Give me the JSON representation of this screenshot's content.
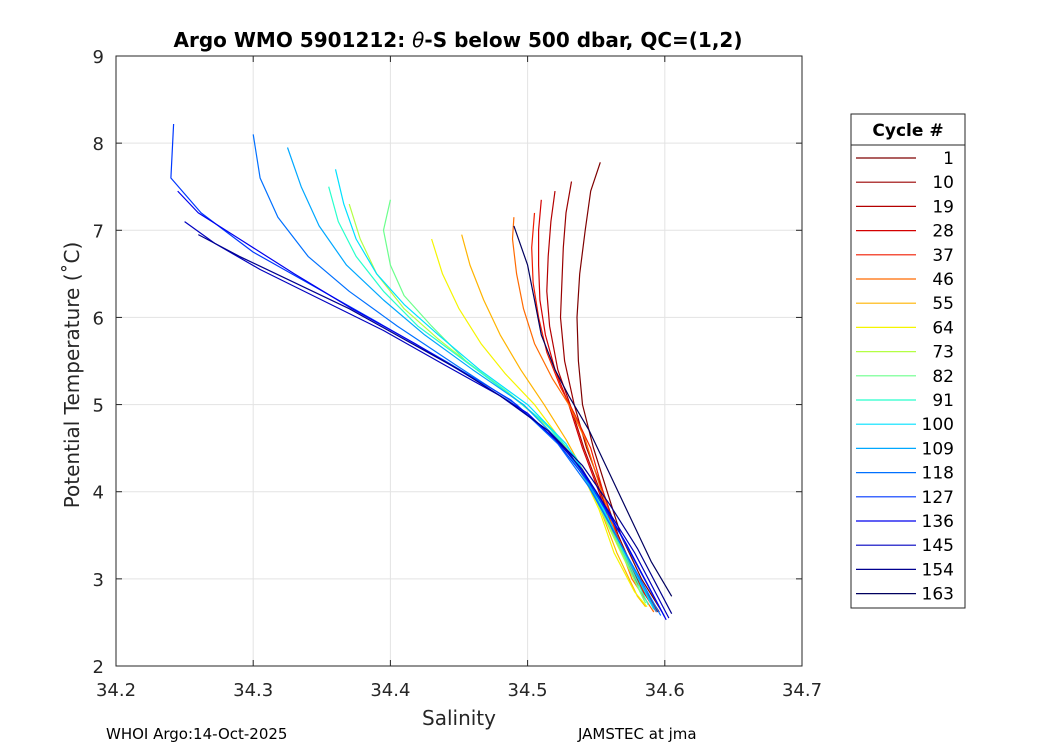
{
  "chart_data": {
    "type": "line",
    "title_prefix": "Argo WMO 5901212: ",
    "title_symbol": "θ",
    "title_suffix": "-S below 500 dbar,  QC=(1,2)",
    "xlabel": "Salinity",
    "ylabel": "Potential Temperature (˚C)",
    "xlim": [
      34.2,
      34.7
    ],
    "ylim": [
      2,
      9
    ],
    "xticks": [
      "34.2",
      "34.3",
      "34.4",
      "34.5",
      "34.6",
      "34.7"
    ],
    "yticks": [
      "2",
      "3",
      "4",
      "5",
      "6",
      "7",
      "8",
      "9"
    ],
    "grid": true,
    "legend": {
      "title": "Cycle #",
      "placement": "outside-right",
      "entries": [
        {
          "label": "1",
          "color": "#7f0000"
        },
        {
          "label": "10",
          "color": "#9a0000"
        },
        {
          "label": "19",
          "color": "#b40000"
        },
        {
          "label": "28",
          "color": "#d40000"
        },
        {
          "label": "37",
          "color": "#f01c00"
        },
        {
          "label": "46",
          "color": "#ff6a00"
        },
        {
          "label": "55",
          "color": "#ffb400"
        },
        {
          "label": "64",
          "color": "#f5f500"
        },
        {
          "label": "73",
          "color": "#b4ff44"
        },
        {
          "label": "82",
          "color": "#6bff8c"
        },
        {
          "label": "91",
          "color": "#28ffcc"
        },
        {
          "label": "100",
          "color": "#00e0ff"
        },
        {
          "label": "109",
          "color": "#00a8ff"
        },
        {
          "label": "118",
          "color": "#0070ff"
        },
        {
          "label": "127",
          "color": "#0038ff"
        },
        {
          "label": "136",
          "color": "#0000ee"
        },
        {
          "label": "145",
          "color": "#0000c0"
        },
        {
          "label": "154",
          "color": "#00008f"
        },
        {
          "label": "163",
          "color": "#00005f"
        }
      ]
    },
    "series": [
      {
        "cycle": "1",
        "color": "#7f0000",
        "points": [
          [
            34.553,
            7.78
          ],
          [
            34.546,
            7.45
          ],
          [
            34.542,
            7.0
          ],
          [
            34.538,
            6.5
          ],
          [
            34.536,
            6.0
          ],
          [
            34.537,
            5.5
          ],
          [
            34.54,
            5.0
          ],
          [
            34.548,
            4.5
          ],
          [
            34.558,
            4.0
          ],
          [
            34.568,
            3.5
          ],
          [
            34.583,
            3.0
          ],
          [
            34.598,
            2.62
          ]
        ]
      },
      {
        "cycle": "10",
        "color": "#9a0000",
        "points": [
          [
            34.532,
            7.56
          ],
          [
            34.528,
            7.2
          ],
          [
            34.526,
            6.8
          ],
          [
            34.525,
            6.4
          ],
          [
            34.524,
            6.0
          ],
          [
            34.527,
            5.5
          ],
          [
            34.534,
            5.0
          ],
          [
            34.543,
            4.5
          ],
          [
            34.555,
            4.0
          ],
          [
            34.566,
            3.5
          ],
          [
            34.58,
            3.0
          ],
          [
            34.596,
            2.62
          ]
        ]
      },
      {
        "cycle": "19",
        "color": "#b40000",
        "points": [
          [
            34.52,
            7.45
          ],
          [
            34.517,
            7.1
          ],
          [
            34.515,
            6.7
          ],
          [
            34.514,
            6.3
          ],
          [
            34.516,
            5.9
          ],
          [
            34.522,
            5.4
          ],
          [
            34.531,
            5.0
          ],
          [
            34.541,
            4.5
          ],
          [
            34.553,
            4.0
          ],
          [
            34.564,
            3.5
          ],
          [
            34.579,
            3.0
          ],
          [
            34.595,
            2.62
          ]
        ]
      },
      {
        "cycle": "28",
        "color": "#d40000",
        "points": [
          [
            34.51,
            7.35
          ],
          [
            34.508,
            7.0
          ],
          [
            34.508,
            6.6
          ],
          [
            34.509,
            6.2
          ],
          [
            34.513,
            5.8
          ],
          [
            34.52,
            5.4
          ],
          [
            34.53,
            5.0
          ],
          [
            34.54,
            4.5
          ],
          [
            34.552,
            4.0
          ],
          [
            34.563,
            3.5
          ],
          [
            34.578,
            3.0
          ],
          [
            34.594,
            2.62
          ]
        ]
      },
      {
        "cycle": "37",
        "color": "#f01c00",
        "points": [
          [
            34.505,
            7.2
          ],
          [
            34.503,
            6.8
          ],
          [
            34.504,
            6.4
          ],
          [
            34.508,
            6.0
          ],
          [
            34.514,
            5.6
          ],
          [
            34.524,
            5.2
          ],
          [
            34.534,
            4.9
          ],
          [
            34.546,
            4.5
          ],
          [
            34.555,
            4.0
          ],
          [
            34.565,
            3.5
          ],
          [
            34.579,
            3.0
          ],
          [
            34.594,
            2.62
          ]
        ]
      },
      {
        "cycle": "46",
        "color": "#ff6a00",
        "points": [
          [
            34.49,
            7.15
          ],
          [
            34.489,
            6.9
          ],
          [
            34.492,
            6.5
          ],
          [
            34.497,
            6.1
          ],
          [
            34.505,
            5.7
          ],
          [
            34.518,
            5.3
          ],
          [
            34.53,
            5.0
          ],
          [
            34.542,
            4.6
          ],
          [
            34.552,
            4.1
          ],
          [
            34.562,
            3.6
          ],
          [
            34.576,
            3.0
          ],
          [
            34.592,
            2.62
          ]
        ]
      },
      {
        "cycle": "55",
        "color": "#ffb400",
        "points": [
          [
            34.452,
            6.95
          ],
          [
            34.458,
            6.6
          ],
          [
            34.468,
            6.2
          ],
          [
            34.48,
            5.8
          ],
          [
            34.495,
            5.4
          ],
          [
            34.512,
            5.0
          ],
          [
            34.528,
            4.6
          ],
          [
            34.542,
            4.2
          ],
          [
            34.553,
            3.8
          ],
          [
            34.565,
            3.3
          ],
          [
            34.58,
            2.8
          ],
          [
            34.586,
            2.68
          ]
        ]
      },
      {
        "cycle": "64",
        "color": "#f5f500",
        "points": [
          [
            34.43,
            6.9
          ],
          [
            34.438,
            6.5
          ],
          [
            34.45,
            6.1
          ],
          [
            34.466,
            5.7
          ],
          [
            34.484,
            5.35
          ],
          [
            34.505,
            5.0
          ],
          [
            34.524,
            4.6
          ],
          [
            34.54,
            4.2
          ],
          [
            34.552,
            3.8
          ],
          [
            34.563,
            3.3
          ],
          [
            34.578,
            2.85
          ],
          [
            34.587,
            2.68
          ]
        ]
      },
      {
        "cycle": "73",
        "color": "#b4ff44",
        "points": [
          [
            34.37,
            7.3
          ],
          [
            34.378,
            6.9
          ],
          [
            34.39,
            6.5
          ],
          [
            34.41,
            6.1
          ],
          [
            34.435,
            5.75
          ],
          [
            34.463,
            5.4
          ],
          [
            34.49,
            5.08
          ],
          [
            34.518,
            4.7
          ],
          [
            34.536,
            4.3
          ],
          [
            34.55,
            3.9
          ],
          [
            34.565,
            3.4
          ],
          [
            34.585,
            2.75
          ]
        ]
      },
      {
        "cycle": "82",
        "color": "#6bff8c",
        "points": [
          [
            34.4,
            7.35
          ],
          [
            34.395,
            7.0
          ],
          [
            34.4,
            6.6
          ],
          [
            34.41,
            6.25
          ],
          [
            34.43,
            5.9
          ],
          [
            34.455,
            5.5
          ],
          [
            34.485,
            5.15
          ],
          [
            34.515,
            4.75
          ],
          [
            34.535,
            4.35
          ],
          [
            34.55,
            3.9
          ],
          [
            34.566,
            3.4
          ],
          [
            34.586,
            2.72
          ]
        ]
      },
      {
        "cycle": "91",
        "color": "#28ffcc",
        "points": [
          [
            34.355,
            7.5
          ],
          [
            34.362,
            7.1
          ],
          [
            34.375,
            6.7
          ],
          [
            34.395,
            6.3
          ],
          [
            34.42,
            5.9
          ],
          [
            34.45,
            5.55
          ],
          [
            34.48,
            5.2
          ],
          [
            34.512,
            4.8
          ],
          [
            34.535,
            4.4
          ],
          [
            34.55,
            3.95
          ],
          [
            34.567,
            3.4
          ],
          [
            34.588,
            2.7
          ]
        ]
      },
      {
        "cycle": "100",
        "color": "#00e0ff",
        "points": [
          [
            34.36,
            7.7
          ],
          [
            34.366,
            7.3
          ],
          [
            34.375,
            6.9
          ],
          [
            34.39,
            6.5
          ],
          [
            34.41,
            6.15
          ],
          [
            34.435,
            5.8
          ],
          [
            34.465,
            5.4
          ],
          [
            34.5,
            5.0
          ],
          [
            34.528,
            4.55
          ],
          [
            34.548,
            4.05
          ],
          [
            34.566,
            3.45
          ],
          [
            34.592,
            2.65
          ]
        ]
      },
      {
        "cycle": "109",
        "color": "#00a8ff",
        "points": [
          [
            34.325,
            7.95
          ],
          [
            34.335,
            7.5
          ],
          [
            34.348,
            7.05
          ],
          [
            34.368,
            6.6
          ],
          [
            34.395,
            6.2
          ],
          [
            34.425,
            5.8
          ],
          [
            34.46,
            5.4
          ],
          [
            34.497,
            5.0
          ],
          [
            34.525,
            4.55
          ],
          [
            34.546,
            4.05
          ],
          [
            34.566,
            3.45
          ],
          [
            34.594,
            2.62
          ]
        ]
      },
      {
        "cycle": "118",
        "color": "#0070ff",
        "points": [
          [
            34.3,
            8.1
          ],
          [
            34.305,
            7.6
          ],
          [
            34.318,
            7.15
          ],
          [
            34.34,
            6.7
          ],
          [
            34.37,
            6.3
          ],
          [
            34.405,
            5.9
          ],
          [
            34.448,
            5.45
          ],
          [
            34.492,
            5.0
          ],
          [
            34.522,
            4.55
          ],
          [
            34.545,
            4.05
          ],
          [
            34.566,
            3.45
          ],
          [
            34.597,
            2.58
          ]
        ]
      },
      {
        "cycle": "127",
        "color": "#0038ff",
        "points": [
          [
            34.242,
            8.22
          ],
          [
            34.24,
            7.6
          ],
          [
            34.262,
            7.2
          ],
          [
            34.3,
            6.75
          ],
          [
            34.345,
            6.35
          ],
          [
            34.39,
            5.95
          ],
          [
            34.44,
            5.5
          ],
          [
            34.488,
            5.05
          ],
          [
            34.52,
            4.6
          ],
          [
            34.545,
            4.1
          ],
          [
            34.568,
            3.5
          ],
          [
            34.6,
            2.56
          ]
        ]
      },
      {
        "cycle": "136",
        "color": "#0000ee",
        "points": [
          [
            34.245,
            7.45
          ],
          [
            34.26,
            7.2
          ],
          [
            34.29,
            6.9
          ],
          [
            34.33,
            6.5
          ],
          [
            34.372,
            6.1
          ],
          [
            34.418,
            5.7
          ],
          [
            34.46,
            5.3
          ],
          [
            34.5,
            4.9
          ],
          [
            34.53,
            4.45
          ],
          [
            34.55,
            4.0
          ],
          [
            34.572,
            3.4
          ],
          [
            34.601,
            2.53
          ]
        ]
      },
      {
        "cycle": "145",
        "color": "#0000c0",
        "points": [
          [
            34.25,
            7.1
          ],
          [
            34.272,
            6.85
          ],
          [
            34.305,
            6.55
          ],
          [
            34.35,
            6.2
          ],
          [
            34.395,
            5.85
          ],
          [
            34.44,
            5.45
          ],
          [
            34.48,
            5.1
          ],
          [
            34.515,
            4.7
          ],
          [
            34.54,
            4.25
          ],
          [
            34.558,
            3.8
          ],
          [
            34.578,
            3.3
          ],
          [
            34.603,
            2.55
          ]
        ]
      },
      {
        "cycle": "154",
        "color": "#00008f",
        "points": [
          [
            34.26,
            6.95
          ],
          [
            34.29,
            6.7
          ],
          [
            34.33,
            6.4
          ],
          [
            34.37,
            6.1
          ],
          [
            34.41,
            5.75
          ],
          [
            34.45,
            5.4
          ],
          [
            34.485,
            5.05
          ],
          [
            34.515,
            4.7
          ],
          [
            34.54,
            4.3
          ],
          [
            34.56,
            3.85
          ],
          [
            34.58,
            3.35
          ],
          [
            34.605,
            2.6
          ]
        ]
      },
      {
        "cycle": "163",
        "color": "#00005f",
        "points": [
          [
            34.49,
            7.05
          ],
          [
            34.5,
            6.6
          ],
          [
            34.505,
            6.2
          ],
          [
            34.51,
            5.8
          ],
          [
            34.52,
            5.4
          ],
          [
            34.53,
            5.1
          ],
          [
            34.545,
            4.7
          ],
          [
            34.56,
            4.2
          ],
          [
            34.575,
            3.7
          ],
          [
            34.59,
            3.2
          ],
          [
            34.605,
            2.8
          ]
        ]
      }
    ]
  },
  "footer": {
    "left": "WHOI Argo:14-Oct-2025",
    "right": "JAMSTEC at jma"
  }
}
